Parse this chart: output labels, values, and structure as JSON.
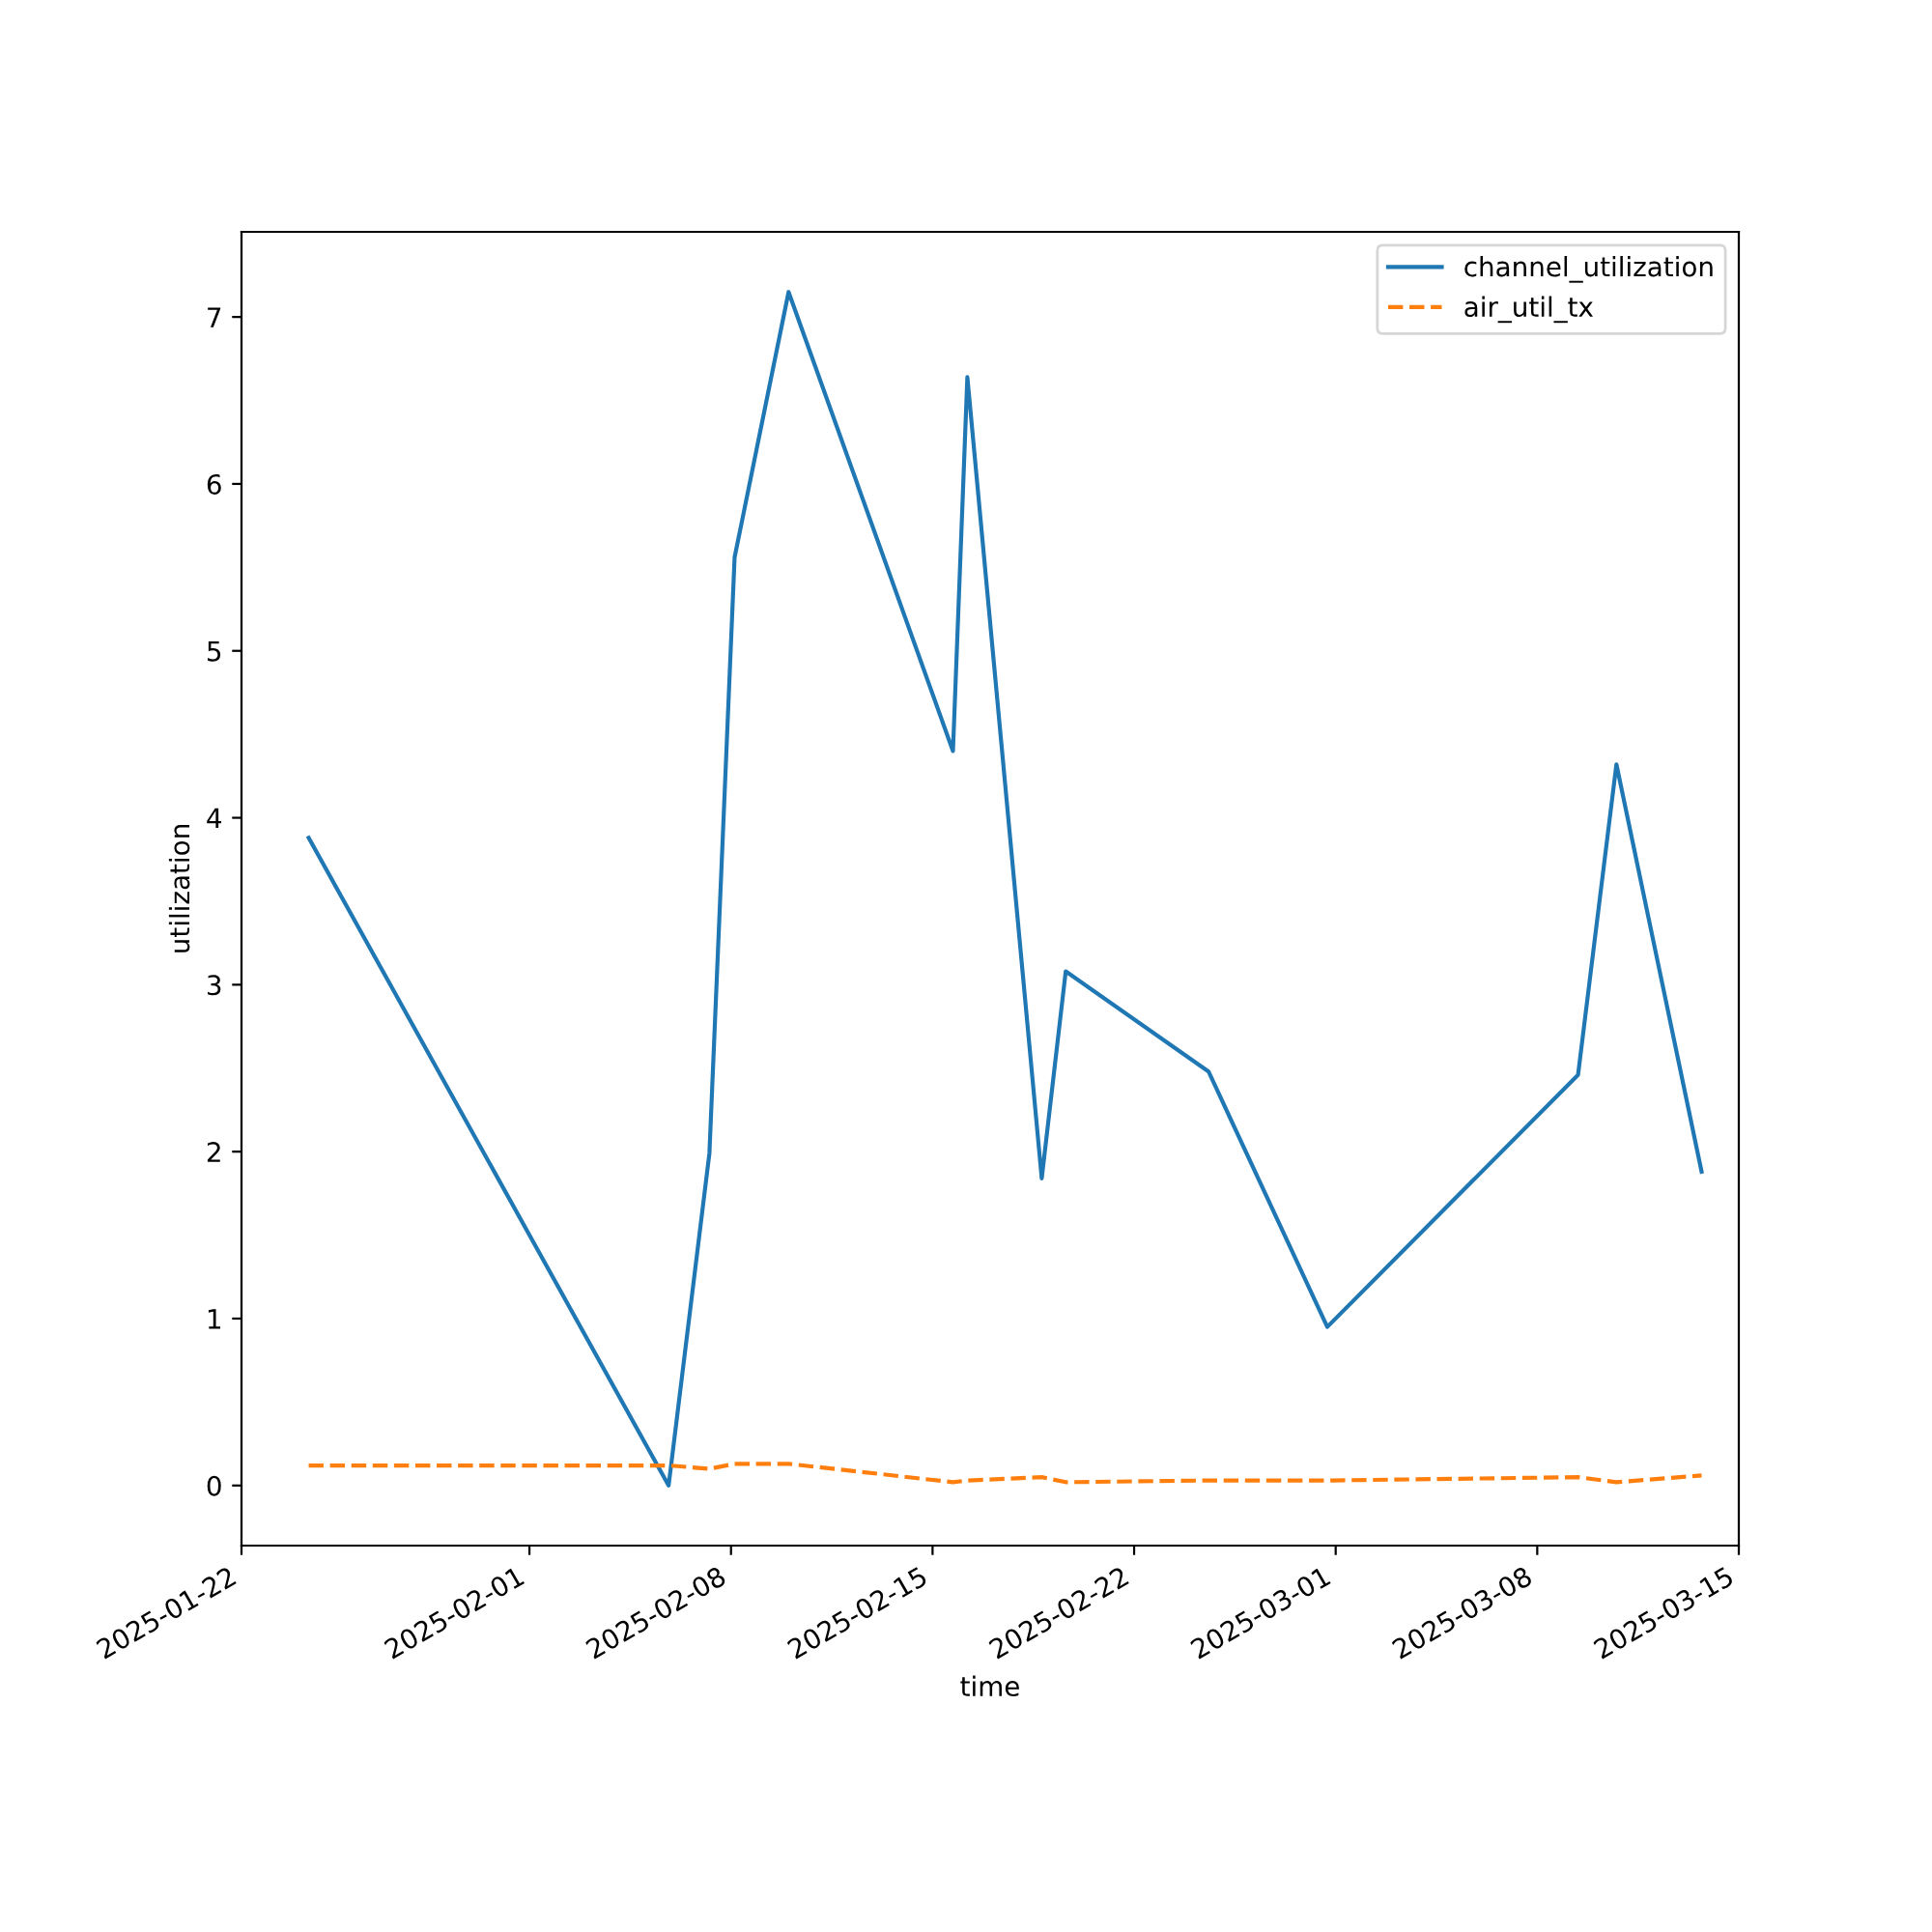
{
  "chart_data": {
    "type": "line",
    "xlabel": "time",
    "ylabel": "utilization",
    "x": [
      "2025-01-24T08:00",
      "2025-02-05T20:00",
      "2025-02-07T06:00",
      "2025-02-08T03:00",
      "2025-02-10T00:00",
      "2025-02-15T17:00",
      "2025-02-16T05:00",
      "2025-02-18T19:00",
      "2025-02-19T15:00",
      "2025-02-24T14:00",
      "2025-02-28T17:00",
      "2025-03-09T10:00",
      "2025-03-10T18:00",
      "2025-03-13T17:00"
    ],
    "series": [
      {
        "name": "channel_utilization",
        "color": "#1f77b4",
        "line_style": "solid",
        "values": [
          3.88,
          0.0,
          1.99,
          5.56,
          7.15,
          4.4,
          6.64,
          1.84,
          3.08,
          2.48,
          0.95,
          2.46,
          4.32,
          1.88
        ]
      },
      {
        "name": "air_util_tx",
        "color": "#ff7f0e",
        "line_style": "dashed",
        "values": [
          0.12,
          0.12,
          0.1,
          0.13,
          0.13,
          0.02,
          0.03,
          0.05,
          0.02,
          0.03,
          0.03,
          0.05,
          0.02,
          0.06
        ]
      }
    ],
    "xlim": [
      "2025-01-22",
      "2025-03-15"
    ],
    "xticks": [
      "2025-01-22",
      "2025-02-01",
      "2025-02-08",
      "2025-02-15",
      "2025-02-22",
      "2025-03-01",
      "2025-03-08",
      "2025-03-15"
    ],
    "ylim": [
      -0.36,
      7.51
    ],
    "yticks": [
      0,
      1,
      2,
      3,
      4,
      5,
      6,
      7
    ],
    "grid": false,
    "legend": "top right",
    "marker": "none"
  }
}
